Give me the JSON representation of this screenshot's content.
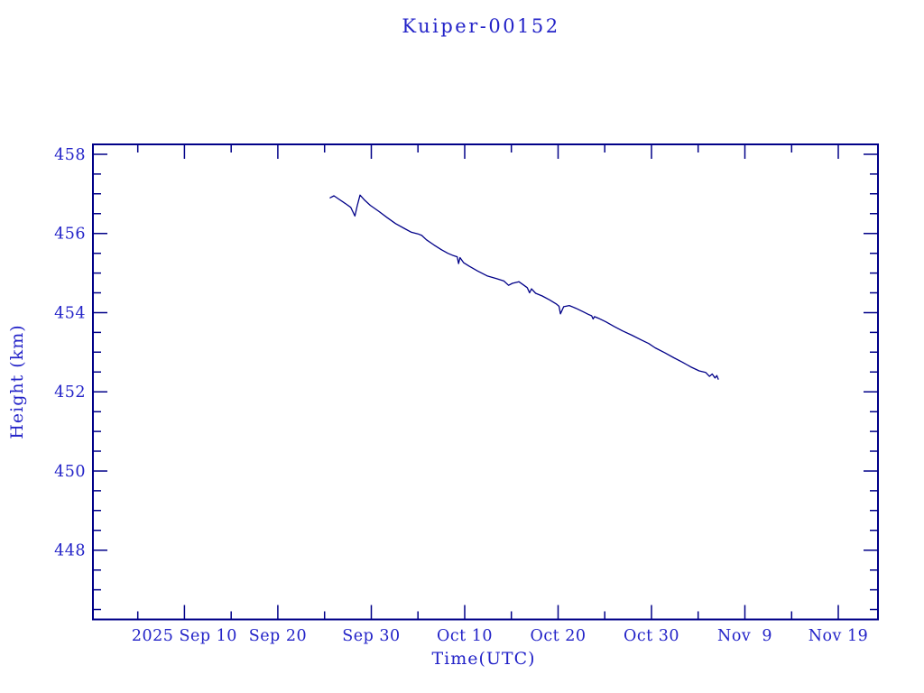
{
  "colors": {
    "background": "#ffffff",
    "text": "#2323c8",
    "frame": "#000088",
    "line": "#000088"
  },
  "chart_data": {
    "type": "line",
    "title": "Kuiper-00152",
    "xlabel": "Time(UTC)",
    "ylabel": "Height (km)",
    "x_unit": "days since 2025-09-01 (value 9 = Sep 10, 39 = Oct 10, 69 = Nov 9)",
    "xlim": [
      -0.8,
      83.25
    ],
    "ylim": [
      446.25,
      458.25
    ],
    "grid": false,
    "legend": "none",
    "x_major_ticks": [
      {
        "value": 9,
        "label": "2025 Sep 10"
      },
      {
        "value": 19,
        "label": "Sep 20"
      },
      {
        "value": 29,
        "label": "Sep 30"
      },
      {
        "value": 39,
        "label": "Oct 10"
      },
      {
        "value": 49,
        "label": "Oct 20"
      },
      {
        "value": 59,
        "label": "Oct 30"
      },
      {
        "value": 69,
        "label": "Nov  9"
      },
      {
        "value": 79,
        "label": "Nov 19"
      }
    ],
    "x_minor_tick_values": [
      4,
      14,
      24,
      34,
      44,
      54,
      64,
      74
    ],
    "y_major_ticks": [
      {
        "value": 448,
        "label": "448"
      },
      {
        "value": 450,
        "label": "450"
      },
      {
        "value": 452,
        "label": "452"
      },
      {
        "value": 454,
        "label": "454"
      },
      {
        "value": 456,
        "label": "456"
      },
      {
        "value": 458,
        "label": "458"
      }
    ],
    "y_minor_tick_values": [
      446.5,
      447,
      447.5,
      448.5,
      449,
      449.5,
      450.5,
      451,
      451.5,
      452.5,
      453,
      453.5,
      454.5,
      455,
      455.5,
      456.5,
      457,
      457.5
    ],
    "series": [
      {
        "name": "Kuiper-00152 height",
        "color": "#000088",
        "points": [
          [
            24.6,
            456.9
          ],
          [
            25.0,
            456.95
          ],
          [
            25.5,
            456.87
          ],
          [
            26.2,
            456.76
          ],
          [
            26.8,
            456.66
          ],
          [
            27.0,
            456.56
          ],
          [
            27.25,
            456.44
          ],
          [
            27.5,
            456.7
          ],
          [
            27.8,
            456.97
          ],
          [
            28.3,
            456.84
          ],
          [
            28.9,
            456.71
          ],
          [
            29.8,
            456.56
          ],
          [
            30.7,
            456.4
          ],
          [
            31.6,
            456.25
          ],
          [
            32.6,
            456.12
          ],
          [
            33.3,
            456.03
          ],
          [
            34.0,
            455.99
          ],
          [
            34.4,
            455.95
          ],
          [
            34.9,
            455.84
          ],
          [
            35.7,
            455.71
          ],
          [
            36.5,
            455.59
          ],
          [
            37.2,
            455.5
          ],
          [
            37.8,
            455.44
          ],
          [
            38.2,
            455.41
          ],
          [
            38.35,
            455.24
          ],
          [
            38.5,
            455.39
          ],
          [
            38.9,
            455.26
          ],
          [
            39.5,
            455.17
          ],
          [
            40.4,
            455.05
          ],
          [
            41.4,
            454.93
          ],
          [
            42.4,
            454.86
          ],
          [
            43.2,
            454.8
          ],
          [
            43.7,
            454.69
          ],
          [
            44.1,
            454.74
          ],
          [
            44.8,
            454.78
          ],
          [
            45.3,
            454.7
          ],
          [
            45.7,
            454.63
          ],
          [
            45.95,
            454.5
          ],
          [
            46.15,
            454.6
          ],
          [
            46.6,
            454.49
          ],
          [
            47.3,
            454.42
          ],
          [
            48.1,
            454.32
          ],
          [
            48.8,
            454.22
          ],
          [
            49.1,
            454.16
          ],
          [
            49.25,
            453.97
          ],
          [
            49.6,
            454.15
          ],
          [
            50.2,
            454.18
          ],
          [
            50.9,
            454.11
          ],
          [
            51.7,
            454.02
          ],
          [
            52.2,
            453.96
          ],
          [
            52.6,
            453.92
          ],
          [
            52.75,
            453.84
          ],
          [
            52.9,
            453.9
          ],
          [
            53.3,
            453.86
          ],
          [
            54.1,
            453.77
          ],
          [
            55.0,
            453.65
          ],
          [
            55.9,
            453.54
          ],
          [
            56.9,
            453.43
          ],
          [
            57.9,
            453.31
          ],
          [
            58.7,
            453.22
          ],
          [
            59.4,
            453.11
          ],
          [
            60.4,
            452.99
          ],
          [
            61.4,
            452.86
          ],
          [
            62.3,
            452.75
          ],
          [
            63.2,
            452.63
          ],
          [
            64.1,
            452.53
          ],
          [
            64.8,
            452.49
          ],
          [
            65.2,
            452.39
          ],
          [
            65.5,
            452.45
          ],
          [
            65.8,
            452.35
          ],
          [
            66.0,
            452.41
          ],
          [
            66.15,
            452.32
          ]
        ]
      }
    ]
  }
}
